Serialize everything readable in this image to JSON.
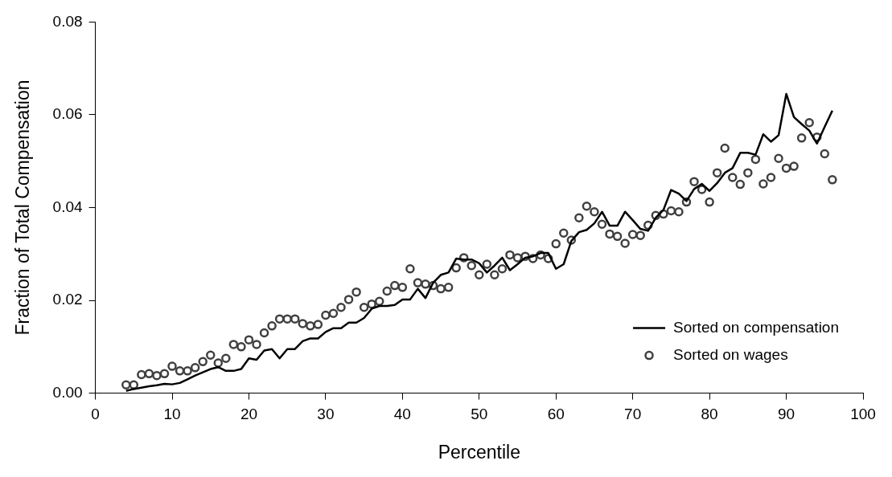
{
  "chart_data": {
    "type": "line",
    "xlabel": "Percentile",
    "ylabel": "Fraction of Total Compensation",
    "x": [
      4,
      5,
      6,
      7,
      8,
      9,
      10,
      11,
      12,
      13,
      14,
      15,
      16,
      17,
      18,
      19,
      20,
      21,
      22,
      23,
      24,
      25,
      26,
      27,
      28,
      29,
      30,
      31,
      32,
      33,
      34,
      35,
      36,
      37,
      38,
      39,
      40,
      41,
      42,
      43,
      44,
      45,
      46,
      47,
      48,
      49,
      50,
      51,
      52,
      53,
      54,
      55,
      56,
      57,
      58,
      59,
      60,
      61,
      62,
      63,
      64,
      65,
      66,
      67,
      68,
      69,
      70,
      71,
      72,
      73,
      74,
      75,
      76,
      77,
      78,
      79,
      80,
      81,
      82,
      83,
      84,
      85,
      86,
      87,
      88,
      89,
      90,
      91,
      92,
      93,
      94,
      95,
      96
    ],
    "series": [
      {
        "name": "Sorted on compensation",
        "color": "#000000",
        "marker": "none",
        "line_style": "solid",
        "values": [
          0.0005,
          0.0009,
          0.0012,
          0.0015,
          0.0017,
          0.002,
          0.0019,
          0.0022,
          0.003,
          0.0038,
          0.0045,
          0.0052,
          0.0056,
          0.0048,
          0.0048,
          0.0052,
          0.0075,
          0.0072,
          0.0092,
          0.0095,
          0.0075,
          0.0095,
          0.0095,
          0.0112,
          0.0118,
          0.0118,
          0.0132,
          0.014,
          0.014,
          0.0152,
          0.0152,
          0.0162,
          0.0182,
          0.0188,
          0.0188,
          0.019,
          0.0202,
          0.0202,
          0.0225,
          0.0205,
          0.0238,
          0.0255,
          0.026,
          0.029,
          0.0288,
          0.0288,
          0.028,
          0.026,
          0.0275,
          0.0292,
          0.0265,
          0.0278,
          0.0292,
          0.0295,
          0.0302,
          0.0302,
          0.0268,
          0.0278,
          0.0328,
          0.0347,
          0.0352,
          0.0366,
          0.0391,
          0.0361,
          0.0361,
          0.0391,
          0.0373,
          0.0354,
          0.035,
          0.0378,
          0.0395,
          0.0438,
          0.043,
          0.0414,
          0.044,
          0.0451,
          0.0436,
          0.0453,
          0.0475,
          0.0485,
          0.0518,
          0.0518,
          0.0514,
          0.0558,
          0.0542,
          0.0556,
          0.0645,
          0.0595,
          0.058,
          0.0566,
          0.0538,
          0.0574,
          0.0609
        ]
      },
      {
        "name": "Sorted on wages",
        "type": "scatter",
        "color": "#404040",
        "marker": "circle",
        "values": [
          0.0018,
          0.0018,
          0.004,
          0.0042,
          0.0038,
          0.0042,
          0.0058,
          0.0048,
          0.0048,
          0.0055,
          0.0068,
          0.0082,
          0.0065,
          0.0075,
          0.0105,
          0.01,
          0.0115,
          0.0105,
          0.013,
          0.0145,
          0.016,
          0.016,
          0.016,
          0.015,
          0.0145,
          0.0148,
          0.0168,
          0.0172,
          0.0185,
          0.0202,
          0.0218,
          0.0185,
          0.0192,
          0.0198,
          0.022,
          0.0232,
          0.0228,
          0.0268,
          0.0238,
          0.0235,
          0.0232,
          0.0225,
          0.0228,
          0.027,
          0.0292,
          0.0275,
          0.0255,
          0.0278,
          0.0255,
          0.0268,
          0.0298,
          0.0292,
          0.0295,
          0.029,
          0.0298,
          0.029,
          0.0322,
          0.0345,
          0.033,
          0.0378,
          0.0403,
          0.0391,
          0.0364,
          0.0343,
          0.0338,
          0.0323,
          0.0342,
          0.034,
          0.0362,
          0.0383,
          0.0386,
          0.0393,
          0.0391,
          0.0412,
          0.0456,
          0.0439,
          0.0412,
          0.0475,
          0.0528,
          0.0465,
          0.045,
          0.0475,
          0.0504,
          0.0451,
          0.0465,
          0.0506,
          0.0485,
          0.0489,
          0.055,
          0.0583,
          0.0552,
          0.0516,
          0.046
        ]
      }
    ],
    "xlim": [
      0,
      100
    ],
    "xticks": [
      0,
      10,
      20,
      30,
      40,
      50,
      60,
      70,
      80,
      90,
      100
    ],
    "ylim": [
      0,
      0.08
    ],
    "yticks": [
      {
        "value": 0,
        "label": "0.00"
      },
      {
        "value": 0.02,
        "label": "0.02"
      },
      {
        "value": 0.04,
        "label": "0.04"
      },
      {
        "value": 0.06,
        "label": "0.06"
      },
      {
        "value": 0.08,
        "label": "0.08"
      }
    ],
    "grid": false,
    "legend": "bottom right"
  }
}
